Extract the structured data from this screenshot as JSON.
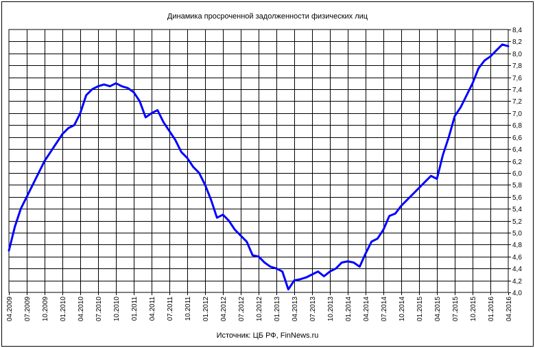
{
  "chart_data": {
    "type": "line",
    "title": "Динамика просроченной задолженности физических лиц",
    "source": "Источник: ЦБ РФ, FinNews.ru",
    "y_axis": {
      "position": "right",
      "min": 4.0,
      "max": 8.4,
      "step": 0.2,
      "tick_labels": [
        "4,0",
        "4,2",
        "4,4",
        "4,6",
        "4,8",
        "5,0",
        "5,2",
        "5,4",
        "5,6",
        "5,8",
        "6,0",
        "6,2",
        "6,4",
        "6,6",
        "6,8",
        "7,0",
        "7,2",
        "7,4",
        "7,6",
        "7,8",
        "8,0",
        "8,2",
        "8,4"
      ]
    },
    "x_axis": {
      "tick_labels": [
        "04.2009",
        "07.2009",
        "10.2009",
        "01.2010",
        "04.2010",
        "07.2010",
        "10.2010",
        "01.2011",
        "04.2011",
        "07.2011",
        "10.2011",
        "01.2012",
        "04.2012",
        "07.2012",
        "10.2012",
        "01.2013",
        "04.2013",
        "07.2013",
        "10.2013",
        "01.2014",
        "04.2014",
        "07.2014",
        "10.2014",
        "01.2015",
        "04.2015",
        "07.2015",
        "10.2015",
        "01.2016",
        "04.2016"
      ]
    },
    "grid": true,
    "line_color": "#0000ff",
    "series": [
      {
        "values": [
          4.7,
          5.1,
          5.4,
          5.6,
          5.8,
          6.0,
          6.2,
          6.35,
          6.5,
          6.65,
          6.75,
          6.8,
          7.0,
          7.3,
          7.4,
          7.45,
          7.48,
          7.45,
          7.5,
          7.45,
          7.42,
          7.35,
          7.2,
          6.93,
          7.0,
          7.05,
          6.85,
          6.7,
          6.55,
          6.35,
          6.25,
          6.1,
          6.0,
          5.8,
          5.55,
          5.25,
          5.3,
          5.2,
          5.05,
          4.95,
          4.85,
          4.62,
          4.6,
          4.5,
          4.43,
          4.4,
          4.35,
          4.05,
          4.2,
          4.22,
          4.25,
          4.3,
          4.35,
          4.27,
          4.35,
          4.4,
          4.5,
          4.52,
          4.5,
          4.43,
          4.65,
          4.85,
          4.9,
          5.05,
          5.28,
          5.32,
          5.45,
          5.55,
          5.65,
          5.75,
          5.85,
          5.95,
          5.9,
          6.3,
          6.6,
          6.95,
          7.1,
          7.3,
          7.5,
          7.75,
          7.88,
          7.95,
          8.05,
          8.15,
          8.12
        ]
      }
    ]
  }
}
